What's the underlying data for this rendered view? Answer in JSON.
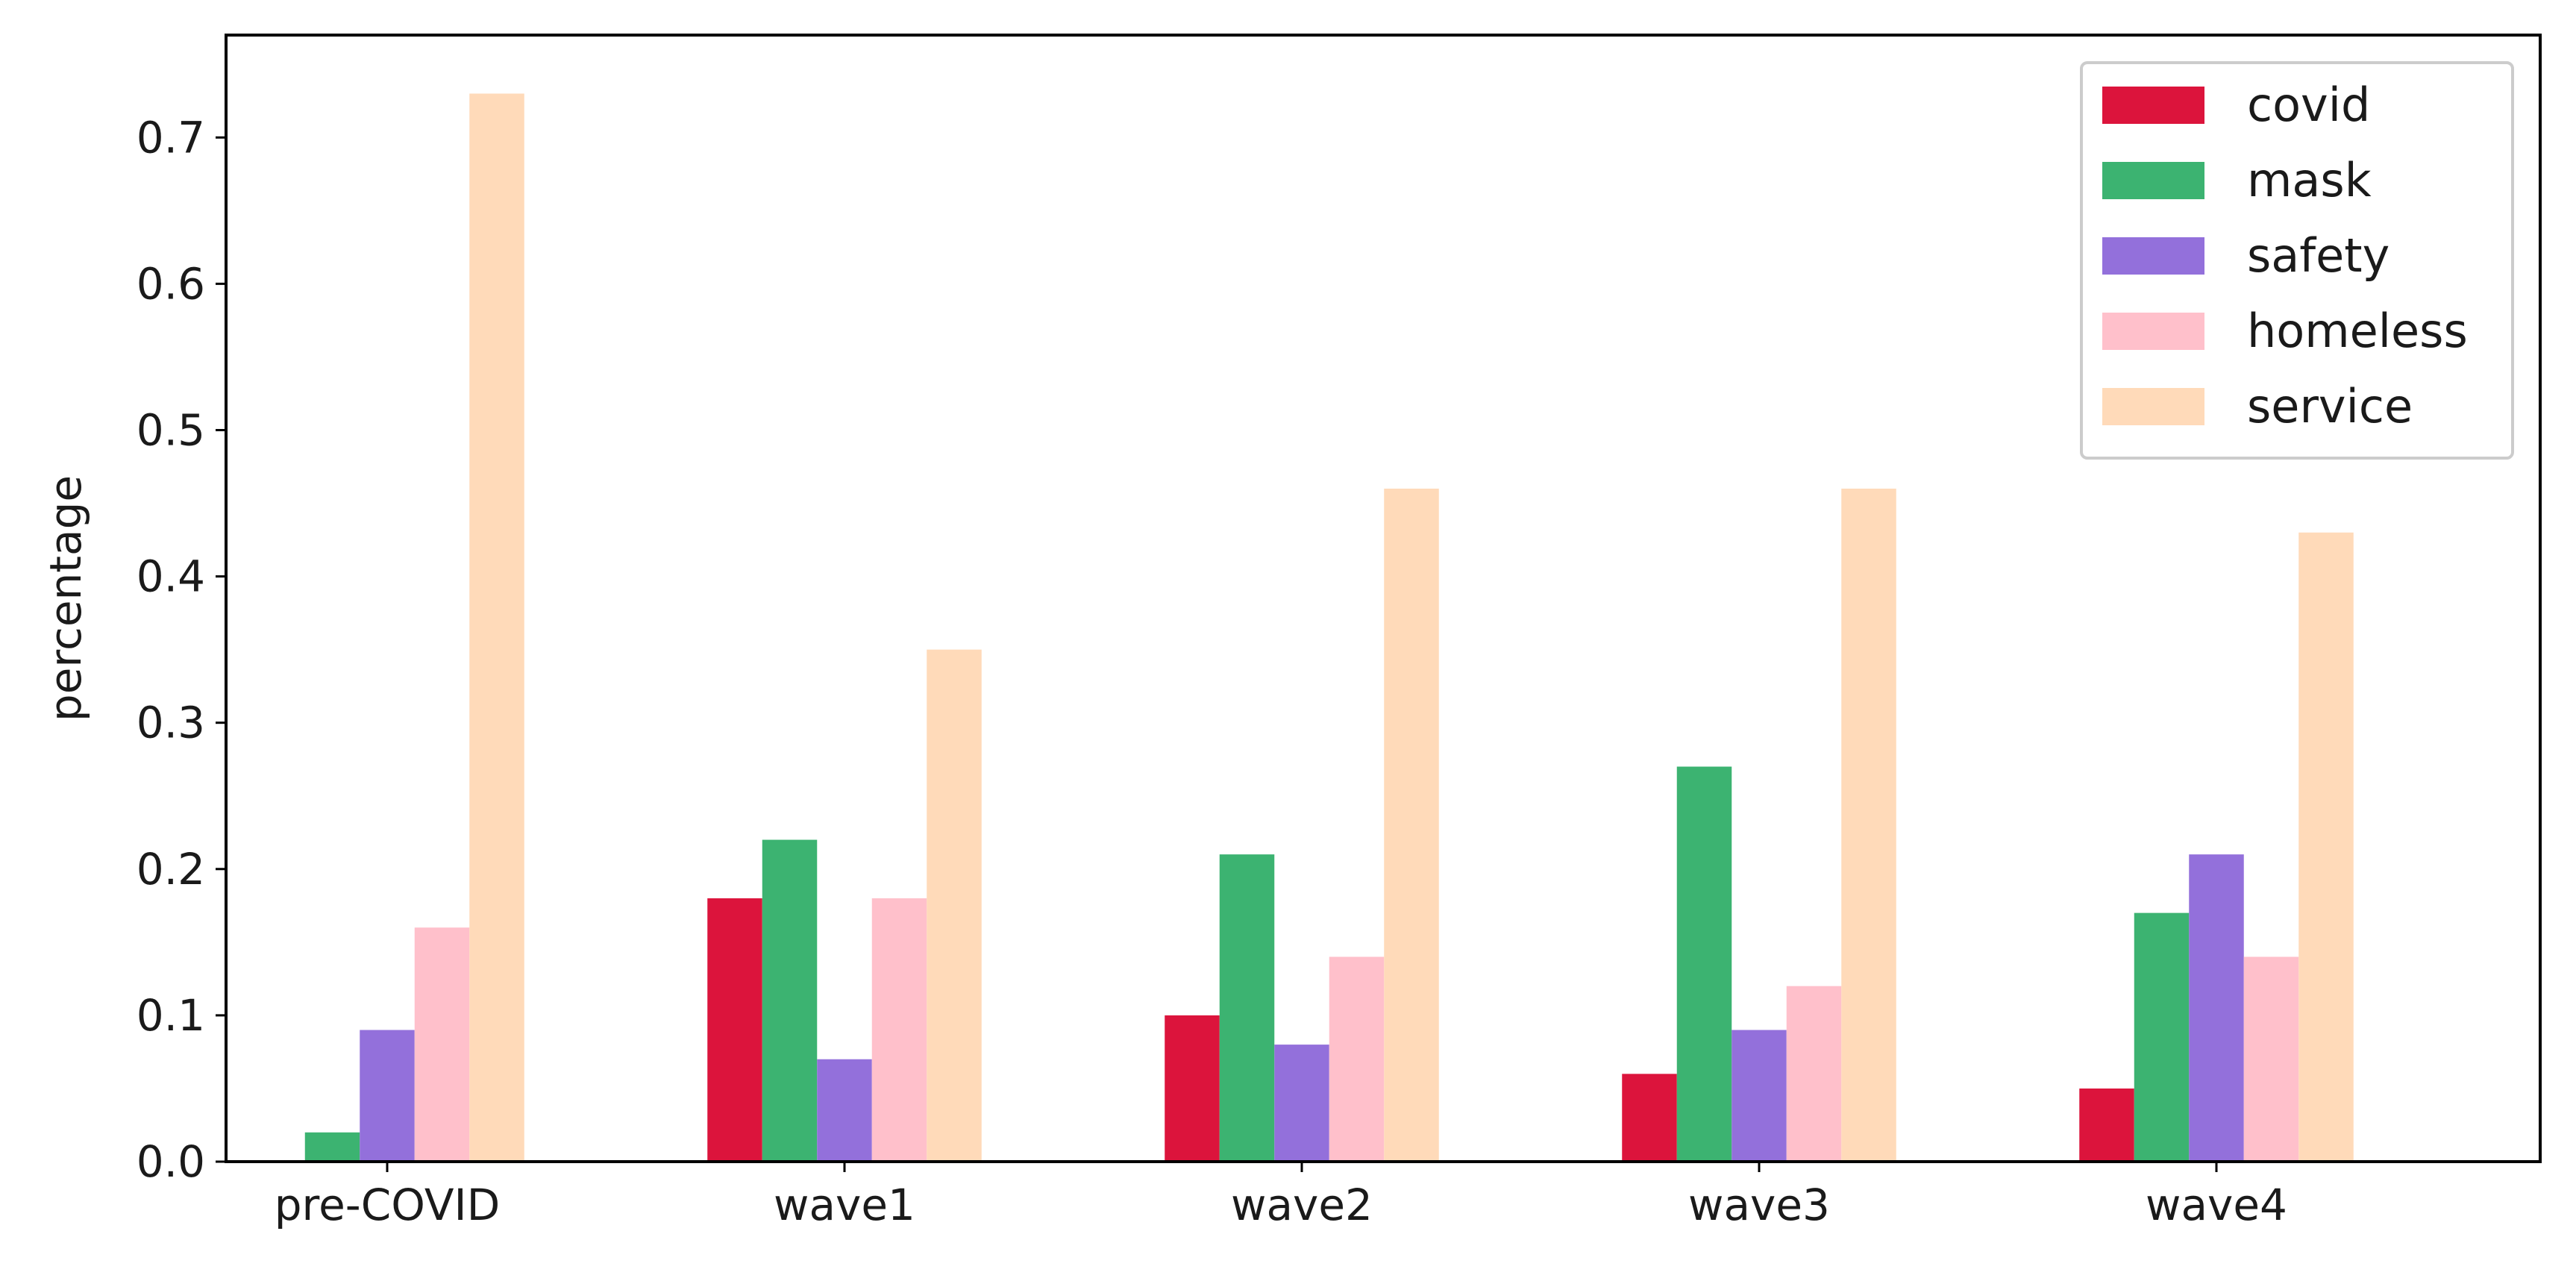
{
  "chart_data": {
    "type": "bar",
    "title": "",
    "xlabel": "",
    "ylabel": "percentage",
    "ylim": [
      0,
      0.77
    ],
    "yticks": [
      0.0,
      0.1,
      0.2,
      0.3,
      0.4,
      0.5,
      0.6,
      0.7
    ],
    "ytick_labels": [
      "0.0",
      "0.1",
      "0.2",
      "0.3",
      "0.4",
      "0.5",
      "0.6",
      "0.7"
    ],
    "categories": [
      "pre-COVID",
      "wave1",
      "wave2",
      "wave3",
      "wave4"
    ],
    "series": [
      {
        "name": "covid",
        "color": "#dc143c",
        "values": [
          0.0,
          0.18,
          0.1,
          0.06,
          0.05
        ]
      },
      {
        "name": "mask",
        "color": "#3cb371",
        "values": [
          0.02,
          0.22,
          0.21,
          0.27,
          0.17
        ]
      },
      {
        "name": "safety",
        "color": "#9370db",
        "values": [
          0.09,
          0.07,
          0.08,
          0.09,
          0.21
        ]
      },
      {
        "name": "homeless",
        "color": "#ffc0cb",
        "values": [
          0.16,
          0.18,
          0.14,
          0.12,
          0.14
        ]
      },
      {
        "name": "service",
        "color": "#ffdab9",
        "values": [
          0.73,
          0.35,
          0.46,
          0.46,
          0.43
        ]
      }
    ],
    "grid": false,
    "legend_position": "top-right"
  }
}
